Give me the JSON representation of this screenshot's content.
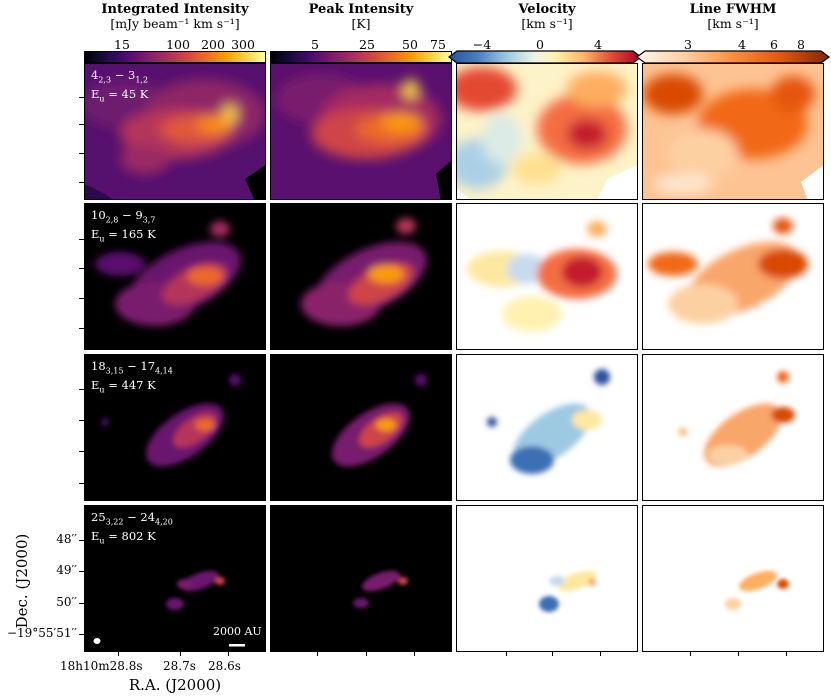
{
  "columns": [
    {
      "title": "Integrated Intensity",
      "unit": "[mJy beam⁻¹ km s⁻¹]",
      "ticks": [
        "15",
        "100",
        "200",
        "300"
      ],
      "colormap": "inferno"
    },
    {
      "title": "Peak Intensity",
      "unit": "[K]",
      "ticks": [
        "5",
        "25",
        "50",
        "75"
      ],
      "colormap": "inferno"
    },
    {
      "title": "Velocity",
      "unit": "[km s⁻¹]",
      "ticks": [
        "−4",
        "0",
        "4"
      ],
      "colormap": "RdYlBu_r"
    },
    {
      "title": "Line FWHM",
      "unit": "[km s⁻¹]",
      "ticks": [
        "3",
        "4",
        "6",
        "8"
      ],
      "colormap": "Oranges"
    }
  ],
  "rows": [
    {
      "transition_main": "4",
      "transition_sub1": "2,3",
      "transition_mid": " − 3",
      "transition_sub2": "1,2",
      "energy": "E",
      "energy_sub": "u",
      "energy_val": " = 45 K"
    },
    {
      "transition_main": "10",
      "transition_sub1": "2,8",
      "transition_mid": " − 9",
      "transition_sub2": "3,7",
      "energy": "E",
      "energy_sub": "u",
      "energy_val": " = 165 K"
    },
    {
      "transition_main": "18",
      "transition_sub1": "3,15",
      "transition_mid": " − 17",
      "transition_sub2": "4,14",
      "energy": "E",
      "energy_sub": "u",
      "energy_val": " = 447 K"
    },
    {
      "transition_main": "25",
      "transition_sub1": "3,22",
      "transition_mid": " − 24",
      "transition_sub2": "4,20",
      "energy": "E",
      "energy_sub": "u",
      "energy_val": " = 802 K"
    }
  ],
  "axes": {
    "y_label": "Dec. (J2000)",
    "y_ticks": [
      "48′′",
      "49′′",
      "50′′",
      "−19°55′51′′"
    ],
    "x_label": "R.A. (J2000)",
    "x_ticks": [
      "18h10m28.8s",
      "28.7s",
      "28.6s"
    ]
  },
  "scalebar": "2000 AU",
  "colors": {
    "dark_bg": "#000000",
    "inferno_peak": "#fcffa4",
    "vel_red": "#b2182b",
    "vel_blue": "#2166ac",
    "fwhm_dark": "#a63603"
  }
}
